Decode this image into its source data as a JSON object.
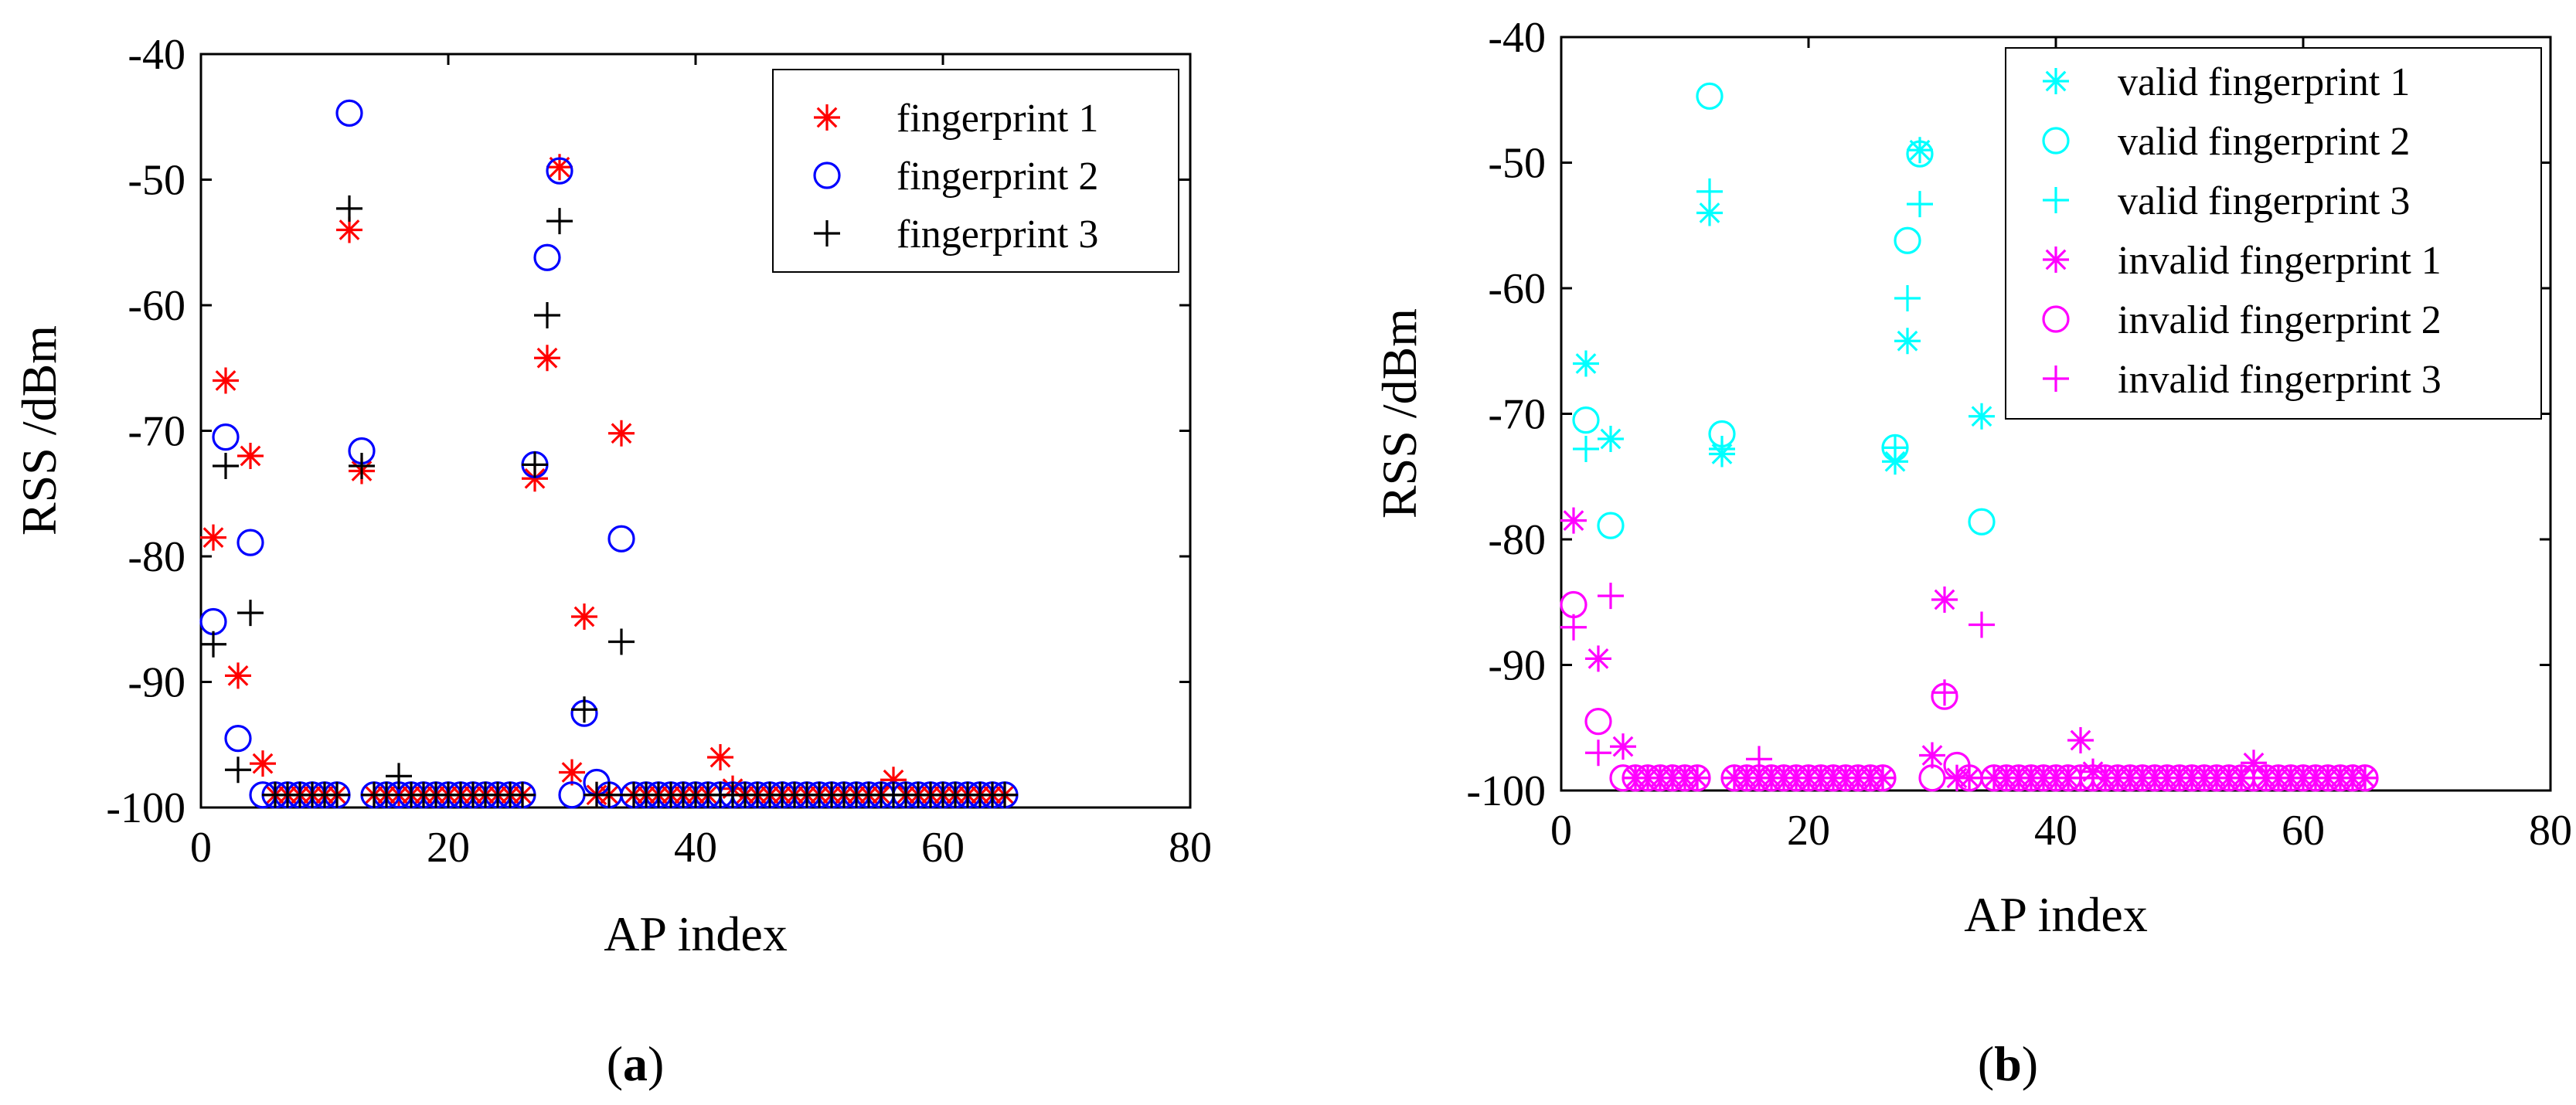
{
  "chart_data": [
    {
      "type": "scatter",
      "panel_label": "a",
      "xlabel": "AP index",
      "ylabel": "RSS /dBm",
      "xlim": [
        0,
        80
      ],
      "ylim": [
        -100,
        -40
      ],
      "xticks": [
        0,
        20,
        40,
        60,
        80
      ],
      "yticks": [
        -40,
        -50,
        -60,
        -70,
        -80,
        -90,
        -100
      ],
      "grid": false,
      "legend_position": "top-right",
      "series": [
        {
          "name": "fingerprint 1",
          "marker": "asterisk",
          "color": "#ff0000",
          "x": [
            1,
            2,
            3,
            4,
            5,
            12,
            13,
            27,
            28,
            29,
            30,
            31,
            32,
            34,
            42,
            43,
            56
          ],
          "y": [
            -78.5,
            -66,
            -89.5,
            -72,
            -96.5,
            -54,
            -73.2,
            -73.8,
            -64.2,
            -49,
            -97.2,
            -84.8,
            -99,
            -70.2,
            -96,
            -98.5,
            -97.8
          ],
          "baseline_x": [
            6,
            7,
            8,
            9,
            10,
            11,
            14,
            15,
            16,
            17,
            18,
            19,
            20,
            21,
            22,
            23,
            24,
            25,
            26,
            33,
            35,
            36,
            37,
            38,
            39,
            40,
            41,
            44,
            45,
            46,
            47,
            48,
            49,
            50,
            51,
            52,
            53,
            54,
            55,
            57,
            58,
            59,
            60,
            61,
            62,
            63,
            64,
            65
          ],
          "baseline_y": -99
        },
        {
          "name": "fingerprint 2",
          "marker": "circle",
          "color": "#0000ff",
          "x": [
            1,
            2,
            3,
            4,
            5,
            12,
            13,
            27,
            28,
            29,
            30,
            31,
            32,
            34
          ],
          "y": [
            -85.2,
            -70.5,
            -94.5,
            -78.9,
            -99,
            -44.7,
            -71.6,
            -72.7,
            -56.2,
            -49.3,
            -99,
            -92.5,
            -98,
            -78.6
          ],
          "baseline_x": [
            6,
            7,
            8,
            9,
            10,
            11,
            14,
            15,
            16,
            17,
            18,
            19,
            20,
            21,
            22,
            23,
            24,
            25,
            26,
            33,
            35,
            36,
            37,
            38,
            39,
            40,
            41,
            42,
            43,
            44,
            45,
            46,
            47,
            48,
            49,
            50,
            51,
            52,
            53,
            54,
            55,
            56,
            57,
            58,
            59,
            60,
            61,
            62,
            63,
            64,
            65
          ],
          "baseline_y": -99
        },
        {
          "name": "fingerprint 3",
          "marker": "plus",
          "color": "#000000",
          "x": [
            1,
            2,
            3,
            4,
            12,
            13,
            16,
            27,
            28,
            29,
            31,
            32,
            34
          ],
          "y": [
            -87,
            -72.8,
            -97,
            -84.5,
            -52.3,
            -72.8,
            -97.5,
            -72.7,
            -60.8,
            -53.3,
            -92.2,
            -99,
            -86.8
          ],
          "baseline_x": [
            6,
            7,
            8,
            9,
            10,
            11,
            14,
            15,
            17,
            18,
            19,
            20,
            21,
            22,
            23,
            24,
            25,
            26,
            33,
            35,
            36,
            37,
            38,
            39,
            40,
            41,
            42,
            43,
            44,
            45,
            46,
            47,
            48,
            49,
            50,
            51,
            52,
            53,
            54,
            55,
            56,
            57,
            58,
            59,
            60,
            61,
            62,
            63,
            64,
            65
          ],
          "baseline_y": -99
        }
      ]
    },
    {
      "type": "scatter",
      "panel_label": "b",
      "xlabel": "AP index",
      "ylabel": "RSS /dBm",
      "xlim": [
        0,
        80
      ],
      "ylim": [
        -100,
        -40
      ],
      "xticks": [
        0,
        20,
        40,
        60,
        80
      ],
      "yticks": [
        -40,
        -50,
        -60,
        -70,
        -80,
        -90,
        -100
      ],
      "grid": false,
      "legend_position": "top-right",
      "series": [
        {
          "name": "valid fingerprint 1",
          "marker": "asterisk",
          "color": "#00ffff",
          "x": [
            2,
            4,
            12,
            13,
            27,
            28,
            29,
            34
          ],
          "y": [
            -66,
            -72,
            -54,
            -73.2,
            -73.8,
            -64.2,
            -49,
            -70.2
          ]
        },
        {
          "name": "valid fingerprint 2",
          "marker": "circle",
          "color": "#00ffff",
          "x": [
            2,
            4,
            12,
            13,
            27,
            28,
            29,
            34
          ],
          "y": [
            -70.5,
            -78.9,
            -44.7,
            -71.6,
            -72.7,
            -56.2,
            -49.3,
            -78.6
          ]
        },
        {
          "name": "valid fingerprint 3",
          "marker": "plus",
          "color": "#00ffff",
          "x": [
            2,
            12,
            13,
            27,
            28,
            29
          ],
          "y": [
            -72.8,
            -52.3,
            -72.8,
            -72.7,
            -60.8,
            -53.3
          ]
        },
        {
          "name": "invalid fingerprint 1",
          "marker": "asterisk",
          "color": "#ff00ff",
          "x": [
            1,
            3,
            5,
            30,
            31,
            32,
            42,
            43,
            56
          ],
          "y": [
            -78.5,
            -89.5,
            -96.5,
            -97.2,
            -84.8,
            -99,
            -96,
            -98.5,
            -97.8
          ],
          "baseline_x": [
            6,
            7,
            8,
            9,
            10,
            11,
            14,
            15,
            16,
            17,
            18,
            19,
            20,
            21,
            22,
            23,
            24,
            25,
            26,
            33,
            35,
            36,
            37,
            38,
            39,
            40,
            41,
            44,
            45,
            46,
            47,
            48,
            49,
            50,
            51,
            52,
            53,
            54,
            55,
            57,
            58,
            59,
            60,
            61,
            62,
            63,
            64,
            65
          ],
          "baseline_y": -99
        },
        {
          "name": "invalid fingerprint 2",
          "marker": "circle",
          "color": "#ff00ff",
          "x": [
            1,
            3,
            5,
            30,
            31,
            32
          ],
          "y": [
            -85.2,
            -94.5,
            -99,
            -99,
            -92.5,
            -98
          ],
          "baseline_x": [
            6,
            7,
            8,
            9,
            10,
            11,
            14,
            15,
            16,
            17,
            18,
            19,
            20,
            21,
            22,
            23,
            24,
            25,
            26,
            33,
            35,
            36,
            37,
            38,
            39,
            40,
            41,
            42,
            43,
            44,
            45,
            46,
            47,
            48,
            49,
            50,
            51,
            52,
            53,
            54,
            55,
            56,
            57,
            58,
            59,
            60,
            61,
            62,
            63,
            64,
            65
          ],
          "baseline_y": -99
        },
        {
          "name": "invalid fingerprint 3",
          "marker": "plus",
          "color": "#ff00ff",
          "x": [
            1,
            3,
            4,
            16,
            31,
            32,
            34
          ],
          "y": [
            -87,
            -97,
            -84.5,
            -97.5,
            -92.2,
            -99,
            -86.8
          ],
          "baseline_x": [
            6,
            7,
            8,
            9,
            10,
            11,
            14,
            15,
            17,
            18,
            19,
            20,
            21,
            22,
            23,
            24,
            25,
            26,
            33,
            35,
            36,
            37,
            38,
            39,
            40,
            41,
            42,
            43,
            44,
            45,
            46,
            47,
            48,
            49,
            50,
            51,
            52,
            53,
            54,
            55,
            56,
            57,
            58,
            59,
            60,
            61,
            62,
            63,
            64,
            65
          ],
          "baseline_y": -99
        }
      ]
    }
  ],
  "captions": [
    {
      "open": "(",
      "label": "a",
      "close": ")"
    },
    {
      "open": "(",
      "label": "b",
      "close": ")"
    }
  ]
}
